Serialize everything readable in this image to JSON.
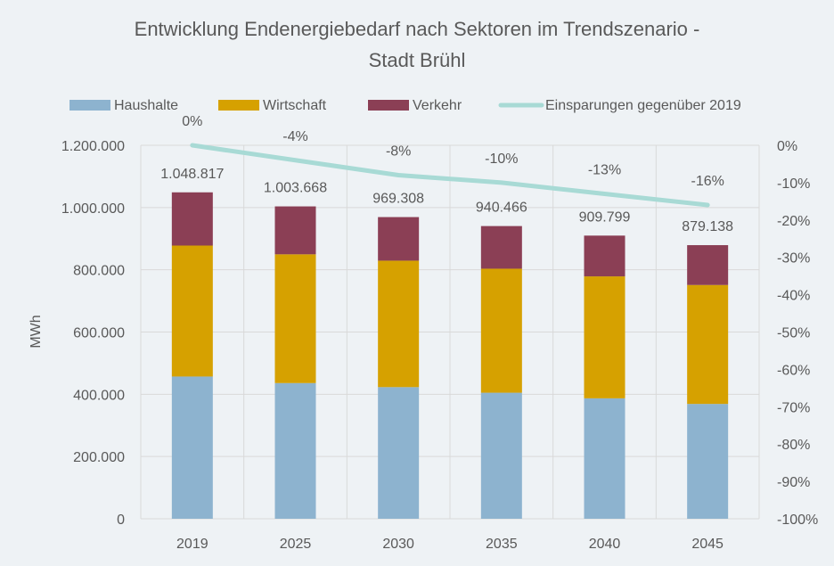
{
  "chart_data": {
    "type": "bar",
    "title_lines": [
      "Entwicklung Endenergiebedarf nach Sektoren im Trendszenario -",
      "Stadt Brühl"
    ],
    "ylabel": "MWh",
    "categories": [
      "2019",
      "2025",
      "2030",
      "2035",
      "2040",
      "2045"
    ],
    "series": [
      {
        "name": "Haushalte",
        "color": "#8db3cf",
        "values": [
          457000,
          436000,
          423000,
          405000,
          387000,
          369000
        ]
      },
      {
        "name": "Wirtschaft",
        "color": "#d6a100",
        "values": [
          420817,
          413668,
          406308,
          398466,
          391799,
          382138
        ]
      },
      {
        "name": "Verkehr",
        "color": "#8b3f55",
        "values": [
          171000,
          154000,
          140000,
          137000,
          131000,
          128000
        ]
      }
    ],
    "totals": [
      1048817,
      1003668,
      969308,
      940466,
      909799,
      879138
    ],
    "total_labels": [
      "1.048.817",
      "1.003.668",
      "969.308",
      "940.466",
      "909.799",
      "879.138"
    ],
    "line": {
      "name": "Einsparungen gegenüber 2019",
      "color": "#a8dad5",
      "values": [
        0,
        -4,
        -8,
        -10,
        -13,
        -16
      ],
      "labels": [
        "0%",
        "-4%",
        "-8%",
        "-10%",
        "-13%",
        "-16%"
      ]
    },
    "ylim": [
      0,
      1200000
    ],
    "y_ticks": [
      0,
      200000,
      400000,
      600000,
      800000,
      1000000,
      1200000
    ],
    "y_tick_labels": [
      "0",
      "200.000",
      "400.000",
      "600.000",
      "800.000",
      "1.000.000",
      "1.200.000"
    ],
    "y2lim": [
      -100,
      0
    ],
    "y2_ticks": [
      0,
      -10,
      -20,
      -30,
      -40,
      -50,
      -60,
      -70,
      -80,
      -90,
      -100
    ],
    "y2_tick_labels": [
      "0%",
      "-10%",
      "-20%",
      "-30%",
      "-40%",
      "-50%",
      "-60%",
      "-70%",
      "-80%",
      "-90%",
      "-100%"
    ],
    "grid": true,
    "legend_position": "top",
    "grid_color": "#d9d9d9",
    "background": "#eef2f5"
  }
}
